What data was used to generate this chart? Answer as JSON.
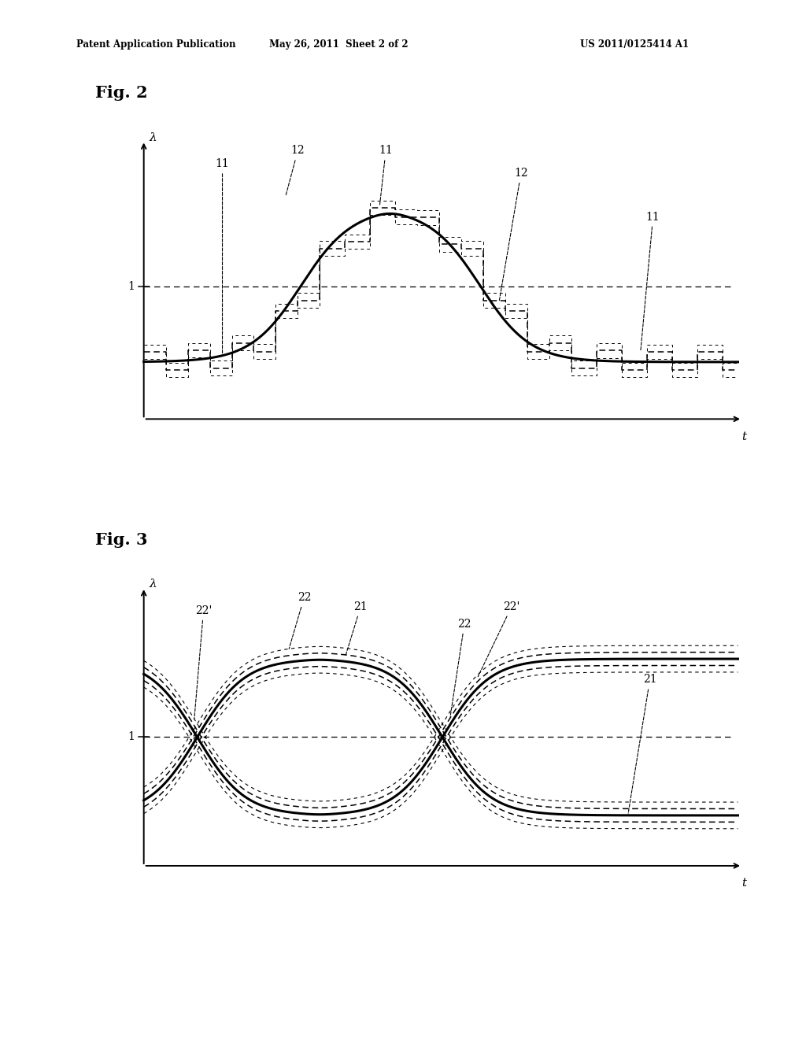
{
  "background_color": "#ffffff",
  "header_left": "Patent Application Publication",
  "header_center": "May 26, 2011  Sheet 2 of 2",
  "header_right": "US 2011/0125414 A1",
  "fig2_label": "Fig. 2",
  "fig3_label": "Fig. 3",
  "lambda_label": "λ",
  "t_label": "t",
  "one_label": "1",
  "fig2_LOW": 0.15,
  "fig2_HIGH": 1.3,
  "fig2_ONE": 0.72,
  "fig3_LOW": 0.1,
  "fig3_HIGH": 1.28,
  "fig3_ONE": 0.69
}
